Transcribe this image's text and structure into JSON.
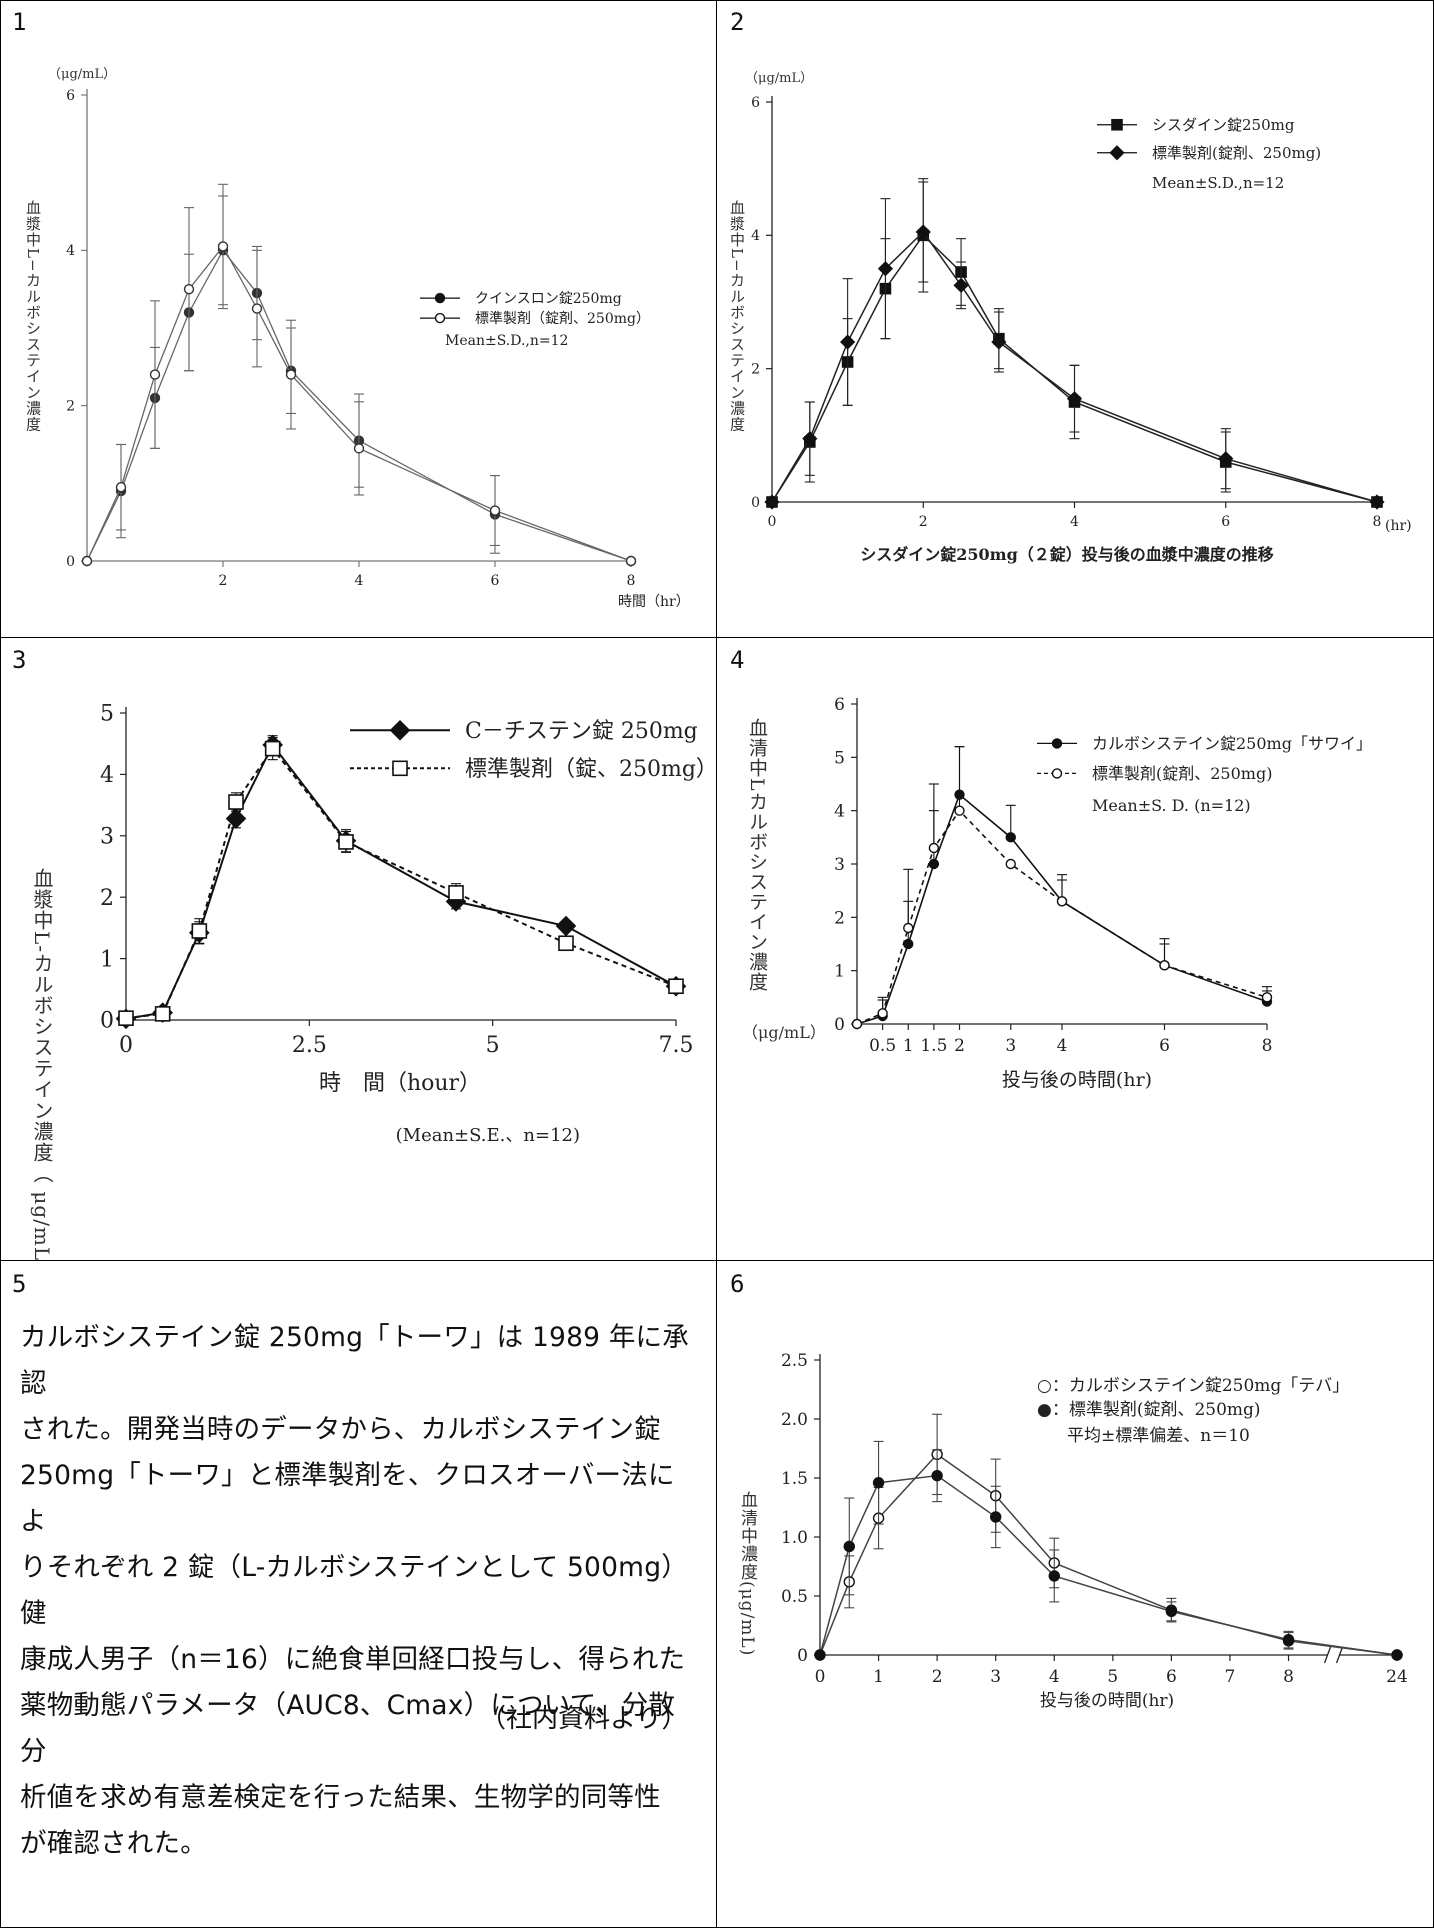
{
  "panels": [
    {
      "number": "1"
    },
    {
      "number": "2"
    },
    {
      "number": "3"
    },
    {
      "number": "4"
    },
    {
      "number": "5"
    },
    {
      "number": "6"
    }
  ],
  "panel5": {
    "lines": [
      "カルボシステイン錠 250mg「トーワ」は 1989 年に承認",
      "された。開発当時のデータから、カルボシステイン錠",
      "250mg「トーワ」と標準製剤を、クロスオーバー法によ",
      "りそれぞれ 2 錠（L-カルボシステインとして 500mg）健",
      "康成人男子（n＝16）に絶食単回経口投与し、得られた",
      "薬物動態パラメータ（AUC8、Cmax）について、分散分",
      "析値を求め有意差検定を行った結果、生物学的同等性",
      "が確認された。"
    ],
    "source": "（社内資料より）"
  },
  "chart_data": [
    {
      "type": "line",
      "unit_label": "（μg/mL）",
      "ylabel": "血漿中L−カルボシステイン濃度",
      "xlabel": "時間（hr）",
      "xlim": [
        0,
        8
      ],
      "ylim": [
        0,
        6
      ],
      "xticks": [
        "2",
        "4",
        "6",
        "8"
      ],
      "yticks": [
        "0",
        "2",
        "4",
        "6"
      ],
      "series": [
        {
          "name": "クインスロン錠250mg",
          "marker": "filled-circle",
          "x": [
            0,
            0.5,
            1,
            1.5,
            2,
            2.5,
            3,
            4,
            6,
            8
          ],
          "y": [
            0,
            0.9,
            2.1,
            3.2,
            4.0,
            3.45,
            2.45,
            1.55,
            0.6,
            0
          ],
          "err": [
            0,
            0.6,
            0.65,
            0.75,
            0.7,
            0.6,
            0.55,
            0.6,
            0.5,
            0
          ]
        },
        {
          "name": "標準製剤（錠剤、250mg）",
          "marker": "open-circle",
          "x": [
            0,
            0.5,
            1,
            1.5,
            2,
            2.5,
            3,
            4,
            6,
            8
          ],
          "y": [
            0,
            0.95,
            2.4,
            3.5,
            4.05,
            3.25,
            2.4,
            1.45,
            0.65,
            0
          ],
          "err": [
            0,
            0.55,
            0.95,
            1.05,
            0.8,
            0.75,
            0.7,
            0.6,
            0.45,
            0
          ]
        }
      ],
      "note": "Mean±S.D.,n=12"
    },
    {
      "type": "line",
      "unit_label": "（μg/mL）",
      "ylabel": "血漿中L−カルボシステイン濃度",
      "xlabel": "(hr)",
      "title": "シスダイン錠250mg（２錠）投与後の血漿中濃度の推移",
      "xlim": [
        0,
        8
      ],
      "ylim": [
        0,
        6
      ],
      "xticks": [
        "0",
        "2",
        "4",
        "6",
        "8"
      ],
      "yticks": [
        "0",
        "2",
        "4",
        "6"
      ],
      "series": [
        {
          "name": "シスダイン錠250mg",
          "marker": "filled-square",
          "x": [
            0,
            0.5,
            1,
            1.5,
            2,
            2.5,
            3,
            4,
            6,
            8
          ],
          "y": [
            0,
            0.9,
            2.1,
            3.2,
            4.0,
            3.45,
            2.45,
            1.5,
            0.6,
            0
          ],
          "err": [
            0,
            0.6,
            0.65,
            0.75,
            0.85,
            0.5,
            0.45,
            0.55,
            0.45,
            0
          ]
        },
        {
          "name": "標準製剤(錠剤、250mg)",
          "marker": "filled-diamond",
          "x": [
            0,
            0.5,
            1,
            1.5,
            2,
            2.5,
            3,
            4,
            6,
            8
          ],
          "y": [
            0,
            0.95,
            2.4,
            3.5,
            4.05,
            3.25,
            2.4,
            1.55,
            0.65,
            0
          ],
          "err": [
            0,
            0.55,
            0.95,
            1.05,
            0.75,
            0.35,
            0.45,
            0.5,
            0.45,
            0
          ]
        }
      ],
      "note": "Mean±S.D.,n=12"
    },
    {
      "type": "line",
      "ylabel": "血漿中L-カルボシステイン濃度（ μg/mL ）",
      "xlabel": "時　間（hour）",
      "xlim": [
        0,
        7.5
      ],
      "ylim": [
        0,
        5
      ],
      "xticks": [
        "0",
        "2.5",
        "5",
        "7.5"
      ],
      "yticks": [
        "0",
        "1",
        "2",
        "3",
        "4",
        "5"
      ],
      "series": [
        {
          "name": "C－チステン錠 250mg",
          "marker": "filled-diamond",
          "x": [
            0,
            0.5,
            1,
            1.5,
            2,
            3,
            4.5,
            6,
            7.5
          ],
          "y": [
            0.02,
            0.12,
            1.42,
            3.28,
            4.48,
            2.92,
            1.93,
            1.53,
            0.55
          ],
          "err": [
            0,
            0.05,
            0.18,
            0.15,
            0.15,
            0.18,
            0.12,
            0,
            0.08
          ]
        },
        {
          "name": "標準製剤（錠、250mg）",
          "marker": "open-square",
          "x": [
            0,
            0.5,
            1,
            1.5,
            2,
            3,
            4.5,
            6,
            7.5
          ],
          "y": [
            0.03,
            0.1,
            1.45,
            3.55,
            4.42,
            2.9,
            2.07,
            1.25,
            0.55
          ],
          "err": [
            0,
            0.05,
            0.2,
            0.15,
            0.18,
            0.17,
            0.15,
            0,
            0.08
          ]
        }
      ],
      "note": "(Mean±S.E.、n=12)"
    },
    {
      "type": "line",
      "unit_label": "（μg/mL）",
      "ylabel": "血清中Lカルボシステイン濃度",
      "xlabel": "投与後の時間(hr)",
      "xlim": [
        0,
        8
      ],
      "ylim": [
        0,
        6
      ],
      "xticks": [
        "0.5",
        "1",
        "1.5",
        "2",
        "3",
        "4",
        "6",
        "8"
      ],
      "yticks": [
        "0",
        "1",
        "2",
        "3",
        "4",
        "5",
        "6"
      ],
      "series": [
        {
          "name": "カルボシステイン錠250mg「サワイ」",
          "marker": "filled-circle",
          "x": [
            0,
            0.5,
            1,
            1.5,
            2,
            3,
            4,
            6,
            8
          ],
          "y": [
            0,
            0.15,
            1.5,
            3.0,
            4.3,
            3.5,
            2.3,
            1.1,
            0.42
          ],
          "err": [
            0,
            0.3,
            0.8,
            1.0,
            0.9,
            0.6,
            0.5,
            0.5,
            0.2
          ]
        },
        {
          "name": "標準製剤(錠剤、250mg)",
          "marker": "open-circle",
          "x": [
            0,
            0.5,
            1,
            1.5,
            2,
            3,
            4,
            6,
            8
          ],
          "y": [
            0,
            0.2,
            1.8,
            3.3,
            4.0,
            3.0,
            2.3,
            1.1,
            0.5
          ],
          "err": [
            0,
            0.3,
            1.1,
            1.2,
            1.2,
            0,
            0.4,
            0.4,
            0.2
          ]
        }
      ],
      "note": "Mean±S. D. (n=12)"
    },
    {
      "type": "line",
      "ylabel": "血清中濃度(μg/mL)",
      "xlabel": "投与後の時間(hr)",
      "xlim": [
        0,
        24
      ],
      "ylim": [
        0,
        2.5
      ],
      "xticks": [
        "0",
        "1",
        "2",
        "3",
        "4",
        "5",
        "6",
        "7",
        "8",
        "24"
      ],
      "yticks": [
        "0",
        "0.5",
        "1.0",
        "1.5",
        "2.0",
        "2.5"
      ],
      "series": [
        {
          "name": "○：カルボシステイン錠250mg「テバ」",
          "marker": "open-circle",
          "x": [
            0,
            0.5,
            1,
            2,
            3,
            4,
            6,
            8,
            24
          ],
          "y": [
            0,
            0.62,
            1.16,
            1.7,
            1.35,
            0.78,
            0.38,
            0.12,
            0
          ],
          "err": [
            0,
            0.22,
            0.26,
            0.34,
            0.31,
            0.21,
            0.1,
            0.07,
            0
          ]
        },
        {
          "name": "●：標準製剤(錠剤、250mg)",
          "marker": "filled-circle",
          "x": [
            0,
            0.5,
            1,
            2,
            3,
            4,
            6,
            8,
            24
          ],
          "y": [
            0,
            0.92,
            1.46,
            1.52,
            1.17,
            0.67,
            0.37,
            0.13,
            0
          ],
          "err": [
            0,
            0.41,
            0.35,
            0.22,
            0.26,
            0.22,
            0.08,
            0.07,
            0
          ]
        }
      ],
      "note": "平均±標準偏差、n＝10"
    }
  ]
}
